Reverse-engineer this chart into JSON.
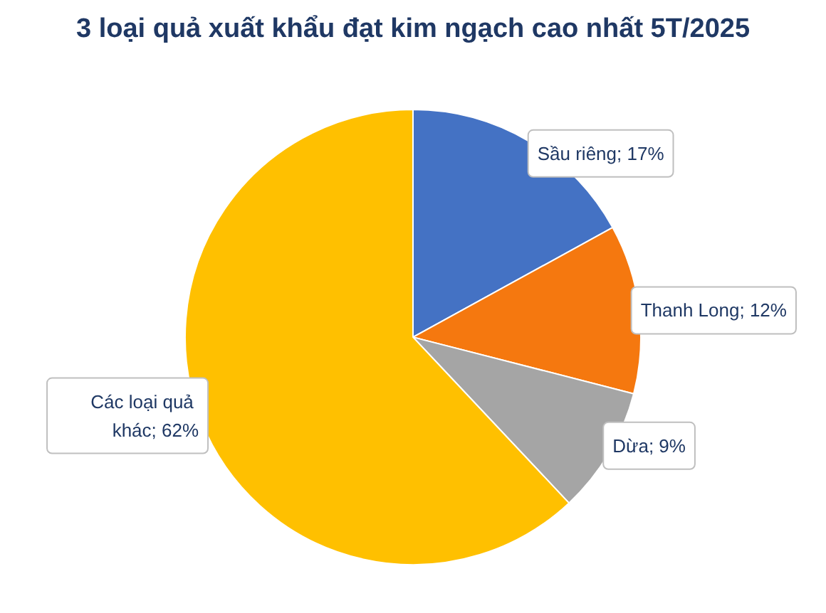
{
  "chart_data": {
    "type": "pie",
    "title": "3 loại quả xuất khẩu đạt kim ngạch cao nhất 5T/2025",
    "categories": [
      "Sầu riêng",
      "Thanh Long",
      "Dừa",
      "Các loại quả khác"
    ],
    "values": [
      17,
      12,
      9,
      62
    ],
    "value_labels": [
      "17%",
      "12%",
      "9%",
      "62%"
    ],
    "colors": [
      "#4472c4",
      "#f5780f",
      "#a5a5a5",
      "#ffc000"
    ],
    "legend": false
  }
}
